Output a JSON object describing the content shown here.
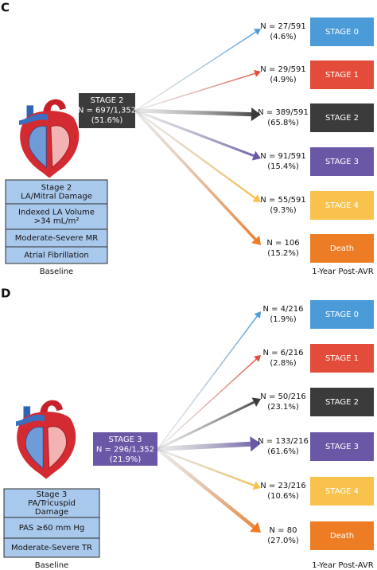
{
  "panels": [
    {
      "label": "C",
      "source": [
        "STAGE 2",
        "N = 697/1,352",
        "(51.6%)"
      ],
      "criteria": [
        [
          "Stage 2",
          "LA/Mitral Damage"
        ],
        [
          "Indexed LA Volume",
          ">34 mL/m²"
        ],
        [
          "Moderate-Severe MR"
        ],
        [
          "Atrial Fibrillation"
        ]
      ],
      "baseline": "Baseline",
      "post": "1-Year Post-AVR",
      "outcomes": [
        {
          "n": "N = 27/591",
          "pct": "(4.6%)",
          "stage": "STAGE 0"
        },
        {
          "n": "N = 29/591",
          "pct": "(4.9%)",
          "stage": "STAGE 1"
        },
        {
          "n": "N = 389/591",
          "pct": "(65.8%)",
          "stage": "STAGE 2"
        },
        {
          "n": "N = 91/591",
          "pct": "(15.4%)",
          "stage": "STAGE 3"
        },
        {
          "n": "N = 55/591",
          "pct": "(9.3%)",
          "stage": "STAGE 4"
        },
        {
          "n": "N = 106",
          "pct": "(15.2%)",
          "stage": "Death"
        }
      ]
    },
    {
      "label": "D",
      "source": [
        "STAGE 3",
        "N = 296/1,352",
        "(21.9%)"
      ],
      "criteria": [
        [
          "Stage 3",
          "PA/Tricuspid",
          "Damage"
        ],
        [
          "PAS ≥60 mm Hg"
        ],
        [
          "Moderate-Severe TR"
        ]
      ],
      "baseline": "Baseline",
      "post": "1-Year Post-AVR",
      "outcomes": [
        {
          "n": "N = 4/216",
          "pct": "(1.9%)",
          "stage": "STAGE 0"
        },
        {
          "n": "N = 6/216",
          "pct": "(2.8%)",
          "stage": "STAGE 1"
        },
        {
          "n": "N = 50/216",
          "pct": "(23.1%)",
          "stage": "STAGE 2"
        },
        {
          "n": "N = 133/216",
          "pct": "(61.6%)",
          "stage": "STAGE 3"
        },
        {
          "n": "N = 23/216",
          "pct": "(10.6%)",
          "stage": "STAGE 4"
        },
        {
          "n": "N = 80",
          "pct": "(27.0%)",
          "stage": "Death"
        }
      ]
    }
  ]
}
